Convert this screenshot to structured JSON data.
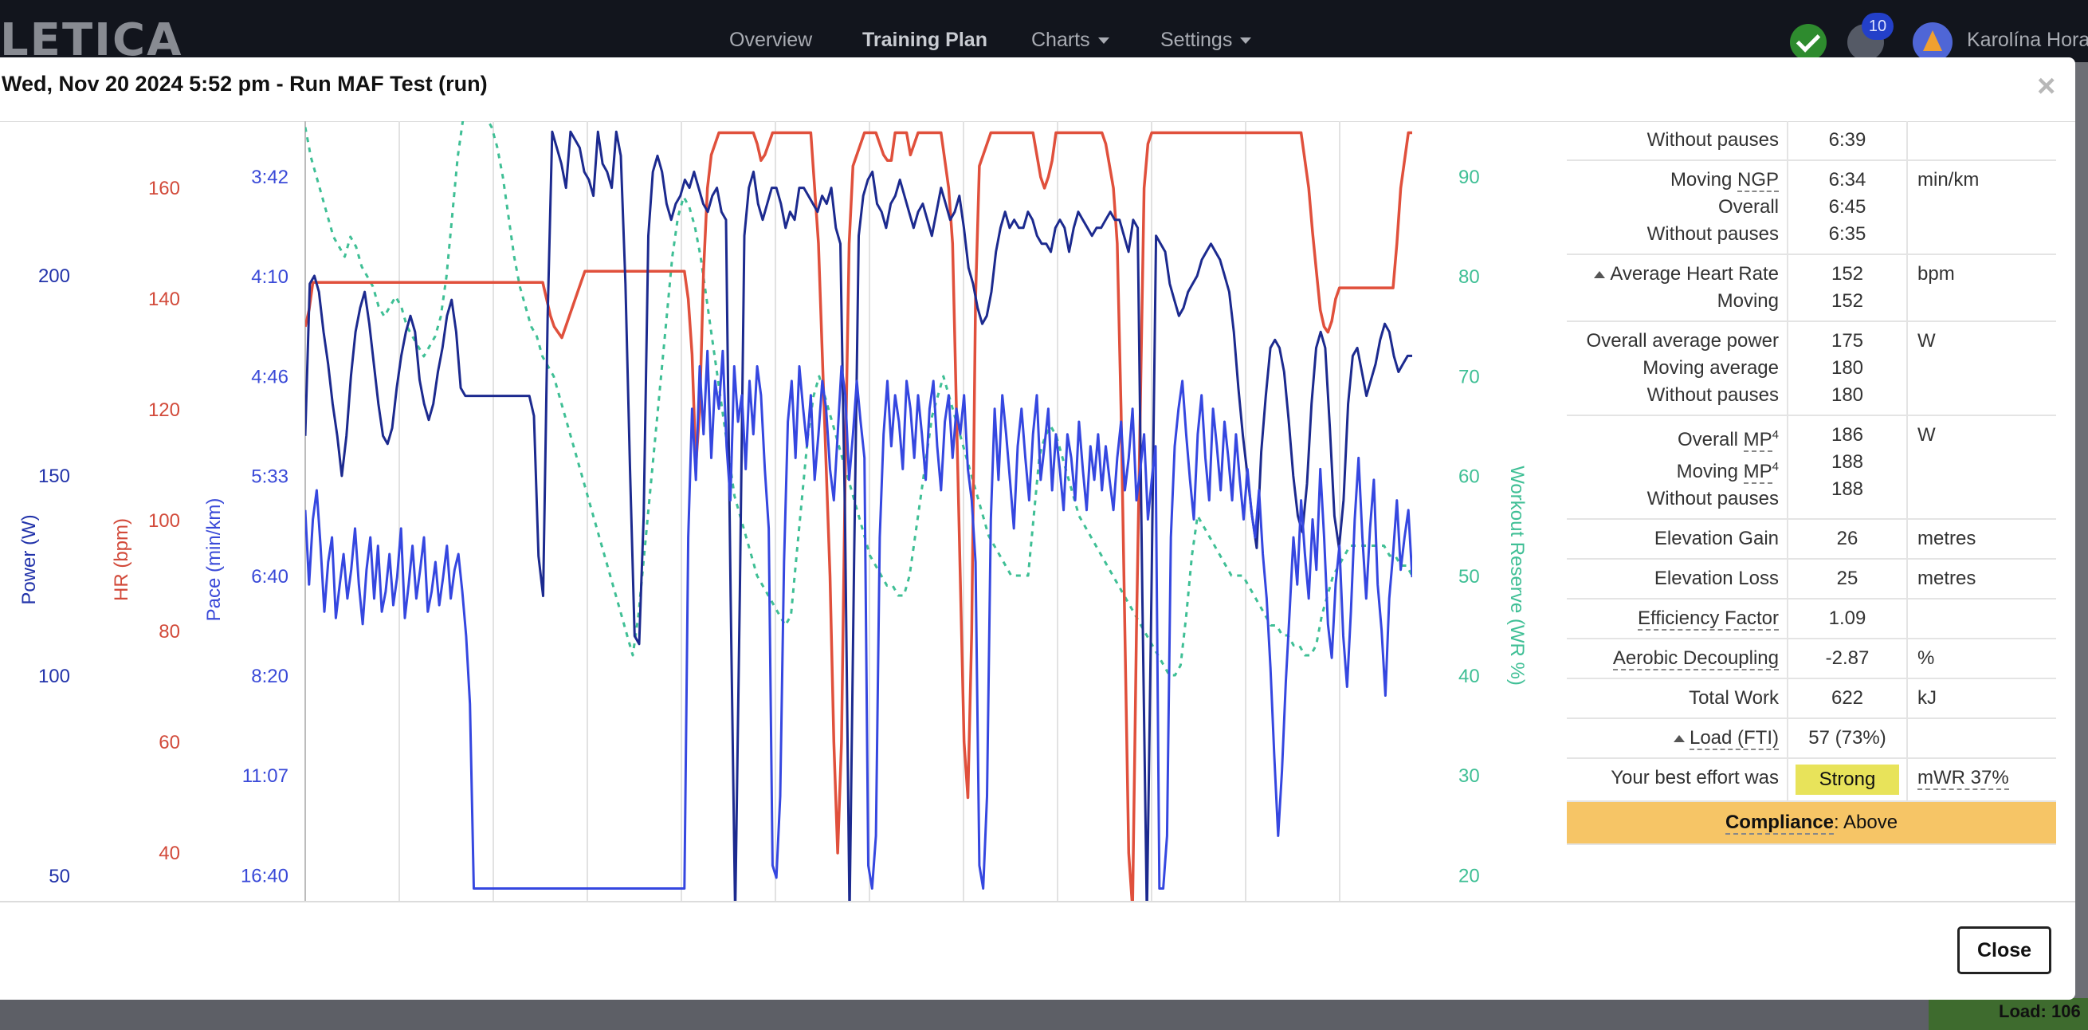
{
  "app": {
    "logo": "LETICA",
    "nav": [
      {
        "label": "Overview"
      },
      {
        "label": "Training Plan"
      },
      {
        "label": "Charts"
      },
      {
        "label": "Settings"
      }
    ],
    "notification_count": "10",
    "user_name": "Karolína Hora",
    "background_load": "Load: 106"
  },
  "modal": {
    "title": "Wed, Nov 20 2024 5:52 pm - Run MAF Test (run)",
    "close_label": "Close"
  },
  "colors": {
    "power": "#1c2a8f",
    "heart_rate": "#e0503c",
    "pace": "#3547e0",
    "workout_reserve": "#3fbf95",
    "strong_badge": "#e8e35a",
    "compliance": "#f6c566"
  },
  "chart_data": {
    "type": "line",
    "axes": [
      {
        "id": "power",
        "label": "Power (W)",
        "ticks": [
          "200",
          "150",
          "100",
          "50"
        ]
      },
      {
        "id": "hr",
        "label": "HR (bpm)",
        "ticks": [
          "160",
          "140",
          "120",
          "100",
          "80",
          "60",
          "40"
        ]
      },
      {
        "id": "pace",
        "label": "Pace (min/km)",
        "ticks": [
          "3:42",
          "4:10",
          "4:46",
          "5:33",
          "6:40",
          "8:20",
          "11:07",
          "16:40"
        ]
      },
      {
        "id": "wr",
        "label": "Workout Reserve (WR %)",
        "ticks": [
          "90",
          "80",
          "70",
          "60",
          "50",
          "40",
          "30",
          "20"
        ]
      }
    ],
    "grid": "vertical",
    "series": [
      {
        "id": "power",
        "values": [
          160,
          198,
          200,
          196,
          186,
          178,
          168,
          160,
          150,
          160,
          175,
          186,
          192,
          196,
          188,
          178,
          168,
          160,
          158,
          162,
          172,
          180,
          186,
          190,
          186,
          174,
          168,
          164,
          168,
          176,
          182,
          190,
          194,
          186,
          172,
          170,
          170,
          170,
          170,
          170,
          170,
          170,
          170,
          170,
          170,
          170,
          170,
          170,
          170,
          170,
          165,
          130,
          120,
          190,
          236,
          232,
          228,
          222,
          236,
          234,
          232,
          226,
          224,
          220,
          236,
          228,
          226,
          222,
          236,
          230,
          198,
          152,
          110,
          108,
          140,
          210,
          226,
          230,
          226,
          218,
          214,
          218,
          220,
          224,
          222,
          226,
          222,
          218,
          216,
          220,
          222,
          216,
          214,
          120,
          40,
          120,
          210,
          222,
          226,
          218,
          214,
          218,
          222,
          222,
          218,
          212,
          216,
          214,
          222,
          222,
          220,
          218,
          216,
          220,
          218,
          222,
          212,
          208,
          140,
          40,
          130,
          210,
          220,
          224,
          226,
          218,
          216,
          212,
          218,
          220,
          224,
          220,
          216,
          212,
          216,
          218,
          214,
          210,
          216,
          222,
          218,
          214,
          216,
          220,
          212,
          202,
          198,
          192,
          188,
          190,
          196,
          206,
          212,
          216,
          212,
          214,
          212,
          212,
          216,
          214,
          210,
          208,
          208,
          206,
          212,
          214,
          212,
          206,
          212,
          216,
          214,
          212,
          210,
          212,
          212,
          214,
          216,
          214,
          214,
          210,
          206,
          214,
          212,
          120,
          40,
          120,
          210,
          208,
          206,
          198,
          194,
          190,
          192,
          196,
          198,
          200,
          204,
          206,
          208,
          206,
          204,
          200,
          196,
          186,
          172,
          160,
          150,
          140,
          132,
          156,
          170,
          182,
          184,
          182,
          176,
          164,
          150,
          140,
          136,
          148,
          168,
          182,
          186,
          182,
          162,
          140,
          132,
          144,
          168,
          180,
          182,
          176,
          170,
          174,
          178,
          184,
          188,
          186,
          180,
          176,
          178,
          180,
          180
        ]
      },
      {
        "id": "hr",
        "values": [
          135,
          138,
          143,
          143,
          143,
          143,
          143,
          143,
          143,
          143,
          143,
          143,
          143,
          143,
          143,
          143,
          143,
          143,
          143,
          143,
          143,
          143,
          143,
          143,
          143,
          143,
          143,
          143,
          143,
          143,
          143,
          143,
          143,
          143,
          143,
          143,
          143,
          143,
          143,
          143,
          143,
          143,
          143,
          143,
          143,
          143,
          143,
          143,
          143,
          143,
          143,
          143,
          143,
          143,
          143,
          143,
          143,
          143,
          143,
          143,
          143,
          143,
          143,
          140,
          137,
          135,
          134,
          133,
          135,
          137,
          139,
          141,
          143,
          145,
          145,
          145,
          145,
          145,
          145,
          145,
          145,
          145,
          145,
          145,
          145,
          145,
          145,
          145,
          145,
          145,
          145,
          145,
          145,
          145,
          145,
          145,
          145,
          145,
          145,
          145,
          140,
          130,
          110,
          120,
          145,
          160,
          166,
          168,
          170,
          170,
          170,
          170,
          170,
          170,
          170,
          170,
          170,
          170,
          168,
          165,
          166,
          168,
          170,
          170,
          170,
          170,
          170,
          170,
          170,
          170,
          170,
          170,
          170,
          160,
          150,
          130,
          110,
          90,
          60,
          40,
          60,
          110,
          150,
          164,
          166,
          168,
          170,
          170,
          170,
          170,
          168,
          166,
          165,
          165,
          170,
          170,
          170,
          170,
          166,
          168,
          170,
          170,
          170,
          170,
          170,
          170,
          170,
          165,
          160,
          150,
          120,
          90,
          60,
          50,
          80,
          140,
          164,
          166,
          168,
          170,
          170,
          170,
          170,
          170,
          170,
          170,
          170,
          170,
          170,
          170,
          170,
          166,
          162,
          160,
          162,
          165,
          170,
          170,
          170,
          170,
          170,
          170,
          170,
          170,
          170,
          170,
          170,
          170,
          170,
          168,
          164,
          160,
          150,
          120,
          80,
          40,
          30,
          80,
          120,
          160,
          168,
          170,
          170,
          170,
          170,
          170,
          170,
          170,
          170,
          170,
          170,
          170,
          170,
          170,
          170,
          170,
          170,
          170,
          170,
          170,
          170,
          170,
          170,
          170,
          170,
          170,
          170,
          170,
          170,
          170,
          170,
          170,
          170,
          170,
          170,
          170,
          170,
          170,
          170,
          170,
          170,
          165,
          160,
          152,
          145,
          138,
          135,
          134,
          136,
          140,
          142,
          142,
          142,
          142,
          142,
          142,
          142,
          142,
          142,
          142,
          142,
          142,
          142,
          142,
          142,
          150,
          160,
          165,
          170,
          170
        ]
      },
      {
        "id": "pace",
        "values": [
          5.9,
          6.8,
          6.0,
          5.7,
          6.3,
          7.2,
          6.5,
          6.2,
          7.3,
          6.8,
          6.4,
          7.0,
          6.6,
          6.1,
          6.8,
          7.4,
          6.6,
          6.2,
          7.0,
          6.3,
          7.2,
          6.9,
          6.4,
          7.1,
          6.7,
          6.1,
          7.3,
          6.8,
          6.3,
          7.0,
          6.6,
          6.2,
          7.2,
          6.9,
          6.5,
          7.1,
          6.7,
          6.3,
          7.0,
          6.6,
          6.4,
          6.9,
          7.6,
          9.0,
          18.0,
          18.0,
          18.0,
          18.0,
          18.0,
          18.0,
          18.0,
          18.0,
          18.0,
          18.0,
          18.0,
          18.0,
          18.0,
          18.0,
          18.0,
          18.0,
          18.0,
          18.0,
          18.0,
          18.0,
          18.0,
          18.0,
          18.0,
          18.0,
          18.0,
          18.0,
          18.0,
          18.0,
          18.0,
          18.0,
          18.0,
          18.0,
          18.0,
          18.0,
          18.0,
          18.0,
          18.0,
          18.0,
          18.0,
          18.0,
          18.0,
          18.0,
          18.0,
          18.0,
          18.0,
          18.0,
          18.0,
          18.0,
          18.0,
          18.0,
          18.0,
          18.0,
          18.0,
          18.0,
          18.0,
          18.0,
          6.2,
          5.0,
          5.6,
          4.7,
          5.2,
          4.6,
          5.4,
          4.8,
          5.0,
          4.6,
          5.3,
          5.8,
          4.7,
          5.1,
          4.9,
          5.5,
          4.8,
          5.2,
          4.7,
          4.9,
          5.5,
          6.1,
          16.0,
          17.0,
          12.0,
          6.5,
          5.1,
          4.8,
          5.4,
          4.7,
          5.0,
          5.3,
          4.9,
          5.6,
          5.2,
          4.8,
          5.0,
          5.5,
          5.8,
          5.2,
          4.7,
          4.9,
          5.6,
          5.2,
          4.8,
          5.1,
          5.4,
          16.0,
          18.0,
          14.0,
          6.2,
          5.2,
          4.8,
          5.3,
          4.9,
          5.1,
          5.5,
          4.8,
          5.0,
          5.4,
          4.9,
          5.2,
          5.6,
          5.0,
          4.8,
          5.3,
          5.7,
          5.1,
          4.9,
          5.4,
          5.0,
          5.2,
          4.9,
          5.5,
          5.8,
          6.5,
          16.0,
          18.0,
          12.0,
          6.0,
          5.0,
          5.6,
          4.9,
          5.2,
          5.6,
          6.1,
          5.3,
          5.0,
          5.4,
          5.8,
          5.2,
          4.9,
          5.6,
          5.3,
          5.0,
          5.7,
          5.2,
          5.5,
          5.9,
          5.2,
          5.4,
          5.8,
          5.1,
          5.5,
          5.9,
          5.3,
          5.6,
          5.2,
          5.7,
          5.3,
          5.6,
          5.9,
          5.4,
          5.1,
          5.7,
          5.4,
          5.0,
          5.8,
          5.5,
          5.2,
          6.0,
          5.6,
          5.3,
          18.0,
          18.0,
          14.0,
          6.2,
          5.3,
          5.0,
          4.8,
          5.2,
          5.6,
          6.0,
          5.2,
          4.9,
          5.4,
          5.8,
          5.0,
          5.3,
          5.7,
          5.1,
          5.4,
          5.8,
          5.2,
          5.6,
          6.0,
          5.5,
          5.9,
          6.2,
          5.7,
          6.4,
          7.0,
          8.2,
          10.5,
          14.0,
          11.0,
          8.5,
          7.2,
          6.2,
          6.8,
          5.8,
          6.4,
          7.0,
          6.0,
          6.6,
          5.5,
          6.2,
          7.4,
          8.0,
          6.8,
          6.3,
          7.6,
          8.6,
          7.2,
          6.0,
          5.4,
          6.2,
          7.0,
          6.1,
          5.6,
          6.8,
          7.5,
          8.8,
          7.0,
          6.4,
          5.8,
          6.6,
          6.2,
          5.9,
          6.7
        ]
      },
      {
        "id": "wr",
        "values": [
          95,
          92,
          90,
          88,
          86,
          84,
          83,
          82,
          84,
          83,
          81,
          80,
          79,
          77,
          76,
          77,
          78,
          77,
          75,
          74,
          73,
          72,
          73,
          74,
          76,
          80,
          86,
          92,
          96,
          98,
          98,
          97,
          96,
          95,
          93,
          90,
          86,
          82,
          79,
          77,
          75,
          74,
          72,
          71,
          70,
          68,
          66,
          64,
          62,
          60,
          58,
          56,
          54,
          52,
          50,
          48,
          46,
          44,
          42,
          46,
          52,
          58,
          64,
          70,
          76,
          82,
          86,
          88,
          87,
          85,
          82,
          78,
          74,
          70,
          66,
          62,
          58,
          56,
          54,
          52,
          50,
          49,
          48,
          47,
          46,
          45,
          46,
          52,
          58,
          64,
          68,
          70,
          68,
          66,
          64,
          62,
          60,
          58,
          56,
          54,
          52,
          51,
          50,
          49,
          49,
          48,
          48,
          50,
          54,
          58,
          62,
          66,
          68,
          70,
          68,
          66,
          64,
          62,
          60,
          58,
          56,
          54,
          53,
          52,
          51,
          50,
          50,
          50,
          50,
          56,
          62,
          64,
          65,
          64,
          62,
          60,
          58,
          56,
          55,
          54,
          53,
          52,
          51,
          50,
          49,
          48,
          47,
          46,
          45,
          44,
          43,
          42,
          41,
          40,
          40,
          41,
          46,
          52,
          56,
          55,
          54,
          53,
          52,
          51,
          50,
          50,
          50,
          49,
          48,
          47,
          46,
          45,
          45,
          44,
          44,
          43,
          43,
          42,
          42,
          43,
          46,
          48,
          50,
          51,
          52,
          53,
          53,
          53,
          53,
          53,
          53,
          53,
          52,
          52,
          51,
          51,
          50
        ]
      }
    ]
  },
  "stats": {
    "rows": [
      {
        "labels": [
          "Without pauses"
        ],
        "values": [
          "6:39"
        ],
        "unit": ""
      },
      {
        "labels": [
          "Moving NGP",
          "Overall",
          "Without pauses"
        ],
        "values": [
          "6:34",
          "6:45",
          "6:35"
        ],
        "unit": "min/km"
      },
      {
        "labels": [
          "Average Heart Rate",
          "Moving"
        ],
        "values": [
          "152",
          "152"
        ],
        "unit": "bpm"
      },
      {
        "labels": [
          "Overall average power",
          "Moving average",
          "Without pauses"
        ],
        "values": [
          "175",
          "180",
          "180"
        ],
        "unit": "W"
      },
      {
        "labels": [
          "Overall MP",
          "Moving MP",
          "Without pauses"
        ],
        "values": [
          "186",
          "188",
          "188"
        ],
        "unit": "W"
      },
      {
        "labels": [
          "Elevation Gain"
        ],
        "values": [
          "26"
        ],
        "unit": "metres"
      },
      {
        "labels": [
          "Elevation Loss"
        ],
        "values": [
          "25"
        ],
        "unit": "metres"
      },
      {
        "labels": [
          "Efficiency Factor"
        ],
        "values": [
          "1.09"
        ],
        "unit": ""
      },
      {
        "labels": [
          "Aerobic Decoupling"
        ],
        "values": [
          "-2.87"
        ],
        "unit": "%"
      },
      {
        "labels": [
          "Total Work"
        ],
        "values": [
          "622"
        ],
        "unit": "kJ"
      },
      {
        "labels": [
          "Load (FTI)"
        ],
        "values": [
          "57 (73%)"
        ],
        "unit": ""
      },
      {
        "labels": [
          "Your best effort was"
        ],
        "values": [
          "Strong"
        ],
        "unit": "mWR 37%"
      }
    ],
    "ngp_abbr": "NGP",
    "mp_abbr": "MP",
    "mp_superscript": "4",
    "compliance_label": "Compliance",
    "compliance_value": ": Above"
  }
}
